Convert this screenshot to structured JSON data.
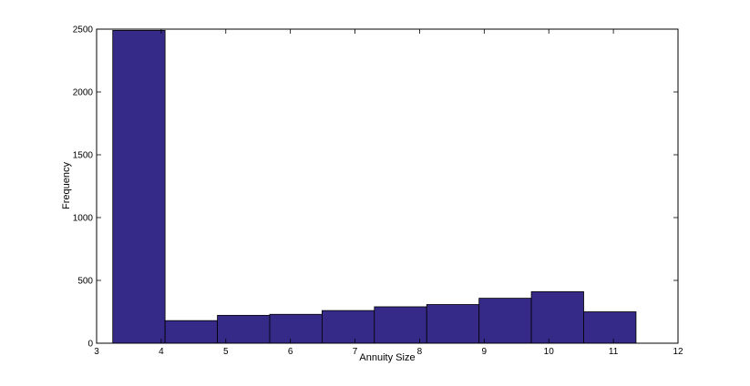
{
  "chart_data": {
    "type": "bar",
    "title": "",
    "xlabel": "Annuity Size",
    "ylabel": "Frequency",
    "xlim": [
      3,
      12
    ],
    "ylim": [
      0,
      2500
    ],
    "xticks": [
      3,
      4,
      5,
      6,
      7,
      8,
      9,
      10,
      11,
      12
    ],
    "yticks": [
      0,
      500,
      1000,
      1500,
      2000,
      2500
    ],
    "bins": [
      {
        "x0": 3.25,
        "x1": 4.06,
        "value": 2490
      },
      {
        "x0": 4.06,
        "x1": 4.87,
        "value": 180
      },
      {
        "x0": 4.87,
        "x1": 5.68,
        "value": 222
      },
      {
        "x0": 5.68,
        "x1": 6.49,
        "value": 230
      },
      {
        "x0": 6.49,
        "x1": 7.3,
        "value": 260
      },
      {
        "x0": 7.3,
        "x1": 8.11,
        "value": 290
      },
      {
        "x0": 8.11,
        "x1": 8.92,
        "value": 308
      },
      {
        "x0": 8.92,
        "x1": 9.73,
        "value": 358
      },
      {
        "x0": 9.73,
        "x1": 10.54,
        "value": 410
      },
      {
        "x0": 10.54,
        "x1": 11.35,
        "value": 250
      }
    ],
    "bar_color": "#352a87",
    "grid": false
  }
}
